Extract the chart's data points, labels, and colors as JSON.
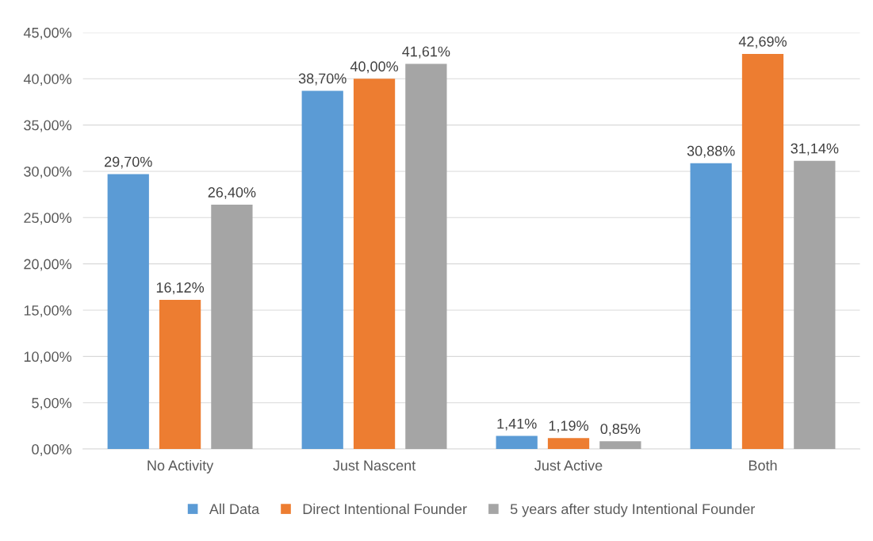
{
  "chart_data": {
    "type": "bar",
    "categories": [
      "No Activity",
      "Just Nascent",
      "Just Active",
      "Both"
    ],
    "series": [
      {
        "name": "All Data",
        "color": "#5b9bd5",
        "values": [
          29.7,
          38.7,
          1.41,
          30.88
        ],
        "value_labels": [
          "29,70%",
          "38,70%",
          "1,41%",
          "30,88%"
        ]
      },
      {
        "name": "Direct Intentional Founder",
        "color": "#ed7d31",
        "values": [
          16.12,
          40.0,
          1.19,
          42.69
        ],
        "value_labels": [
          "16,12%",
          "40,00%",
          "1,19%",
          "42,69%"
        ]
      },
      {
        "name": "5 years after study Intentional Founder",
        "color": "#a5a5a5",
        "values": [
          26.4,
          41.61,
          0.85,
          31.14
        ],
        "value_labels": [
          "26,40%",
          "41,61%",
          "0,85%",
          "31,14%"
        ]
      }
    ],
    "ylim": [
      0,
      45
    ],
    "yticks": [
      {
        "value": 0,
        "label": "0,00%"
      },
      {
        "value": 5,
        "label": "5,00%"
      },
      {
        "value": 10,
        "label": "10,00%"
      },
      {
        "value": 15,
        "label": "15,00%"
      },
      {
        "value": 20,
        "label": "20,00%"
      },
      {
        "value": 25,
        "label": "25,00%"
      },
      {
        "value": 30,
        "label": "30,00%"
      },
      {
        "value": 35,
        "label": "35,00%"
      },
      {
        "value": 40,
        "label": "40,00%"
      },
      {
        "value": 45,
        "label": "45,00%"
      }
    ],
    "grid": "y",
    "legend": "bottom"
  }
}
